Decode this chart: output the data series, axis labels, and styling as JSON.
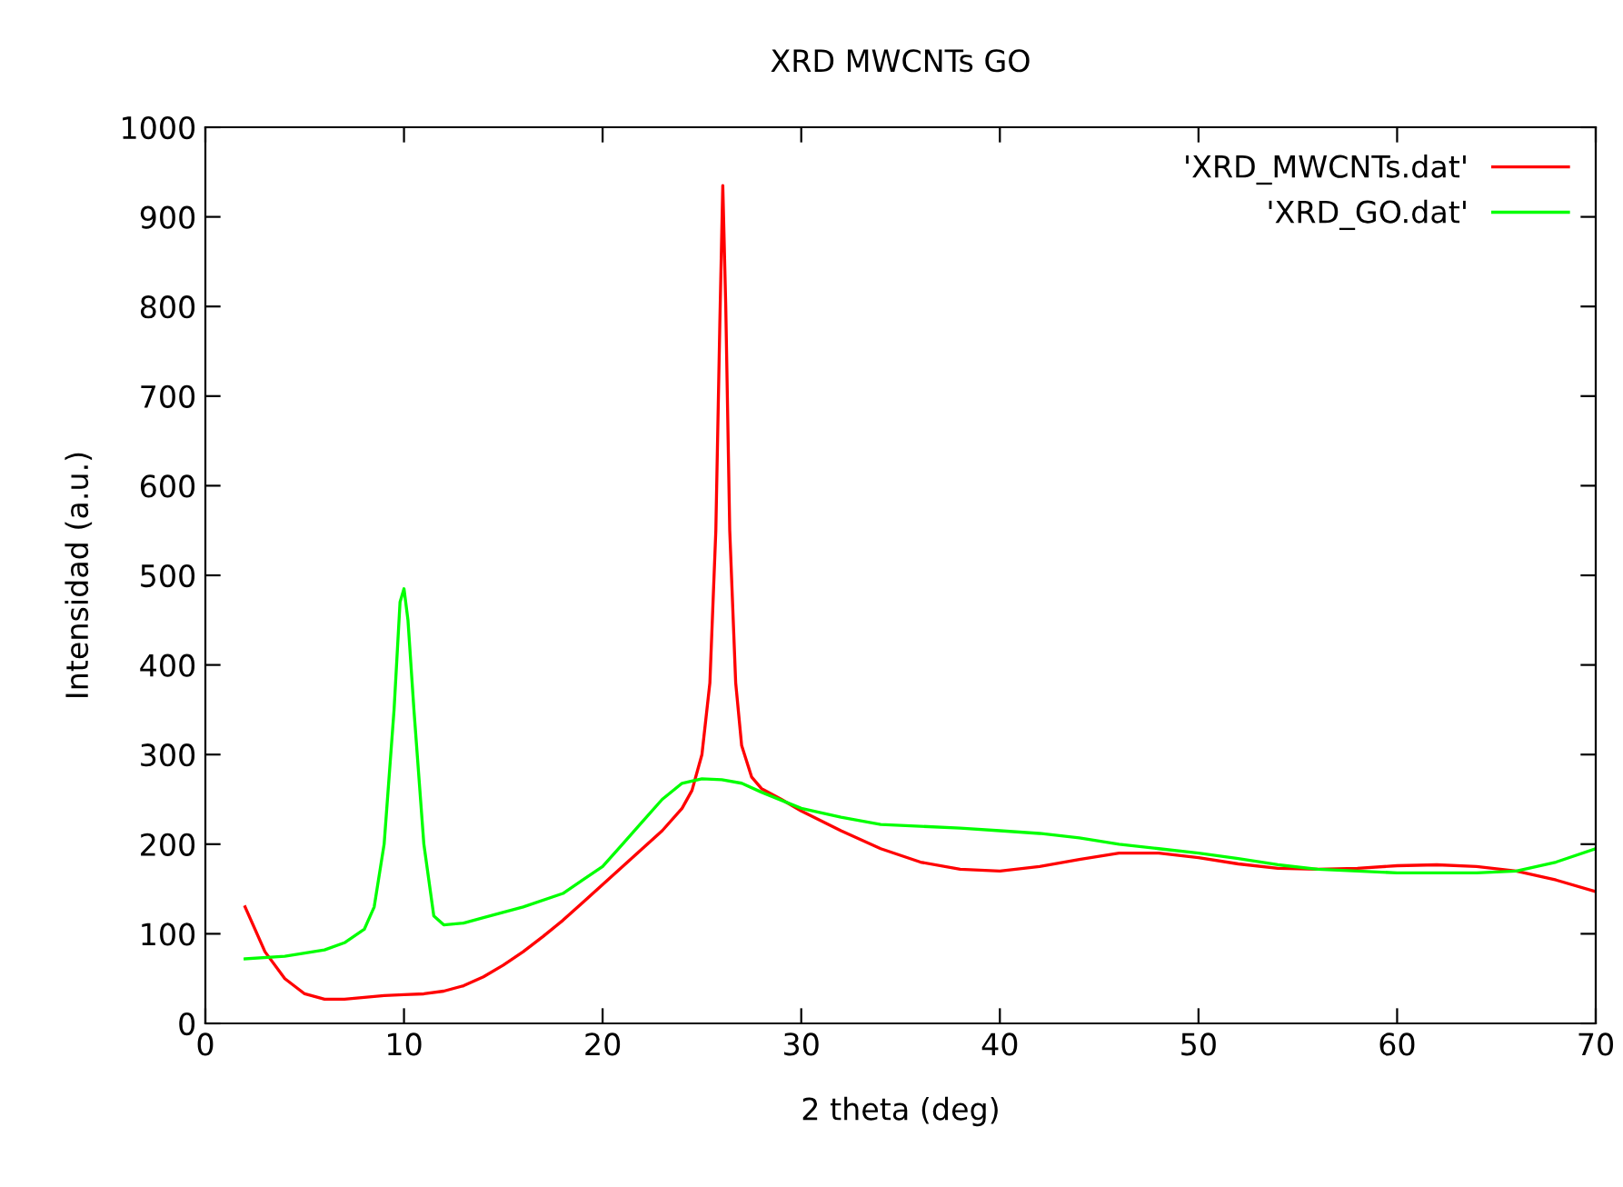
{
  "chart_data": {
    "type": "line",
    "title": "XRD MWCNTs GO",
    "xlabel": "2 theta (deg)",
    "ylabel": "Intensidad (a.u.)",
    "xlim": [
      0,
      70
    ],
    "xticks": [
      0,
      10,
      20,
      30,
      40,
      50,
      60,
      70
    ],
    "ylim": [
      0,
      1000
    ],
    "yticks": [
      0,
      100,
      200,
      300,
      400,
      500,
      600,
      700,
      800,
      900,
      1000
    ],
    "grid": false,
    "legend": "top right",
    "marker": "none",
    "line_style": "solid",
    "series": [
      {
        "name": "'XRD_MWCNTs.dat'",
        "color": "#ff0000",
        "x": [
          2,
          3,
          4,
          5,
          6,
          7,
          8,
          9,
          10,
          11,
          12,
          13,
          14,
          15,
          16,
          17,
          18,
          19,
          20,
          21,
          22,
          23,
          24,
          24.5,
          25,
          25.4,
          25.7,
          25.9,
          26.05,
          26.2,
          26.4,
          26.7,
          27,
          27.5,
          28,
          29,
          30,
          32,
          34,
          36,
          38,
          40,
          42,
          44,
          46,
          48,
          50,
          52,
          54,
          56,
          58,
          60,
          62,
          64,
          66,
          68,
          70
        ],
        "values": [
          130,
          80,
          50,
          33,
          27,
          27,
          29,
          31,
          32,
          33,
          36,
          42,
          52,
          65,
          80,
          97,
          115,
          135,
          155,
          175,
          195,
          215,
          240,
          260,
          300,
          380,
          550,
          780,
          935,
          800,
          550,
          380,
          310,
          275,
          262,
          250,
          237,
          215,
          195,
          180,
          172,
          170,
          175,
          183,
          190,
          190,
          185,
          178,
          173,
          172,
          173,
          176,
          177,
          175,
          170,
          160,
          147
        ]
      },
      {
        "name": "'XRD_GO.dat'",
        "color": "#00ff00",
        "x": [
          2,
          4,
          6,
          7,
          8,
          8.5,
          9,
          9.5,
          9.8,
          10,
          10.2,
          10.5,
          11,
          11.5,
          12,
          13,
          14,
          16,
          18,
          19,
          20,
          21,
          22,
          23,
          24,
          25,
          26,
          27,
          28,
          30,
          32,
          34,
          36,
          38,
          40,
          42,
          44,
          46,
          48,
          50,
          52,
          54,
          56,
          58,
          60,
          62,
          64,
          66,
          68,
          70
        ],
        "values": [
          72,
          75,
          82,
          90,
          105,
          130,
          200,
          350,
          470,
          485,
          450,
          350,
          200,
          120,
          110,
          112,
          118,
          130,
          145,
          160,
          175,
          200,
          225,
          250,
          268,
          273,
          272,
          268,
          258,
          240,
          230,
          222,
          220,
          218,
          215,
          212,
          207,
          200,
          195,
          190,
          184,
          177,
          172,
          170,
          168,
          168,
          168,
          170,
          180,
          195
        ]
      }
    ]
  }
}
